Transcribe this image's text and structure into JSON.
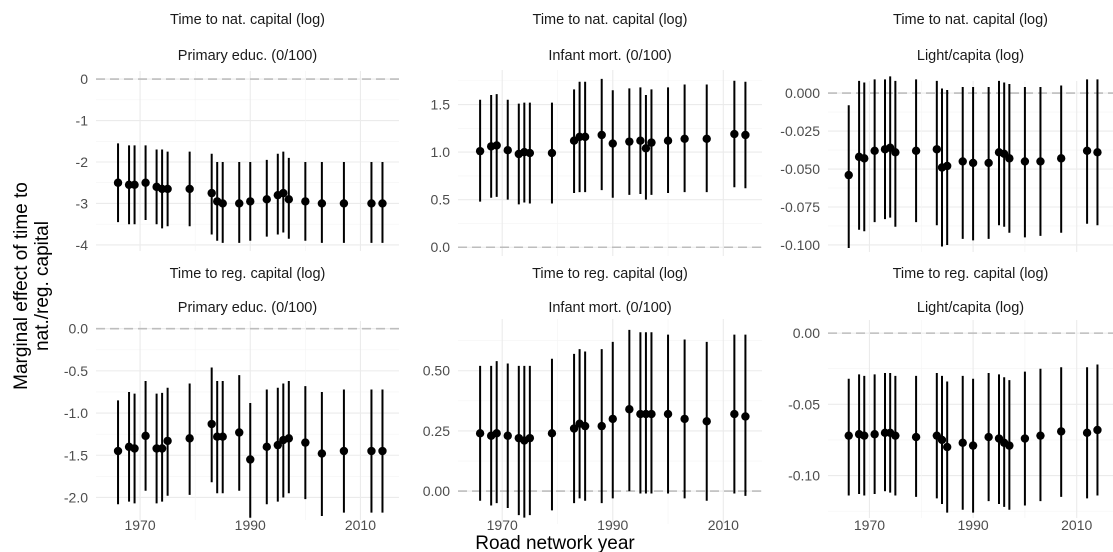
{
  "chart_data": {
    "type": "scatter",
    "style": "point-range",
    "xlabel": "Road network year",
    "ylabel": "Marginal effect of time to\nnat./reg. capital",
    "grid": true,
    "zero_line": "dashed",
    "panels": [
      {
        "row_strip": "Time to nat. capital (log)",
        "col_strip": "Primary educ. (0/100)",
        "xlim": [
          1962,
          2017
        ],
        "ylim": [
          -4.05,
          0.05
        ],
        "yticks": [
          "0",
          "-1",
          "-2",
          "-3",
          "-4"
        ],
        "points": [
          {
            "x": 1966,
            "y": -2.5,
            "lo": -3.45,
            "hi": -1.55
          },
          {
            "x": 1968,
            "y": -2.55,
            "lo": -3.5,
            "hi": -1.6
          },
          {
            "x": 1969,
            "y": -2.55,
            "lo": -3.5,
            "hi": -1.6
          },
          {
            "x": 1971,
            "y": -2.5,
            "lo": -3.4,
            "hi": -1.6
          },
          {
            "x": 1973,
            "y": -2.6,
            "lo": -3.5,
            "hi": -1.7
          },
          {
            "x": 1974,
            "y": -2.65,
            "lo": -3.6,
            "hi": -1.7
          },
          {
            "x": 1975,
            "y": -2.65,
            "lo": -3.55,
            "hi": -1.75
          },
          {
            "x": 1979,
            "y": -2.65,
            "lo": -3.55,
            "hi": -1.75
          },
          {
            "x": 1983,
            "y": -2.75,
            "lo": -3.75,
            "hi": -1.8
          },
          {
            "x": 1984,
            "y": -2.95,
            "lo": -3.9,
            "hi": -2.0
          },
          {
            "x": 1985,
            "y": -3.0,
            "lo": -3.95,
            "hi": -2.0
          },
          {
            "x": 1988,
            "y": -3.0,
            "lo": -3.95,
            "hi": -2.0
          },
          {
            "x": 1990,
            "y": -2.95,
            "lo": -3.9,
            "hi": -2.0
          },
          {
            "x": 1993,
            "y": -2.9,
            "lo": -3.8,
            "hi": -1.95
          },
          {
            "x": 1995,
            "y": -2.8,
            "lo": -3.75,
            "hi": -1.8
          },
          {
            "x": 1996,
            "y": -2.75,
            "lo": -3.7,
            "hi": -1.75
          },
          {
            "x": 1997,
            "y": -2.9,
            "lo": -3.85,
            "hi": -1.9
          },
          {
            "x": 2000,
            "y": -2.95,
            "lo": -3.9,
            "hi": -2.0
          },
          {
            "x": 2003,
            "y": -3.0,
            "lo": -3.95,
            "hi": -2.0
          },
          {
            "x": 2007,
            "y": -3.0,
            "lo": -3.95,
            "hi": -2.0
          },
          {
            "x": 2012,
            "y": -3.0,
            "lo": -3.95,
            "hi": -2.0
          },
          {
            "x": 2014,
            "y": -3.0,
            "lo": -3.95,
            "hi": -2.0
          }
        ]
      },
      {
        "row_strip": "Time to nat. capital (log)",
        "col_strip": "Infant mort. (0/100)",
        "xlim": [
          1962,
          2017
        ],
        "ylim": [
          -0.05,
          1.8
        ],
        "yticks": [
          "0.0",
          "0.5",
          "1.0",
          "1.5"
        ],
        "points": [
          {
            "x": 1966,
            "y": 1.01,
            "lo": 0.48,
            "hi": 1.55
          },
          {
            "x": 1968,
            "y": 1.06,
            "lo": 0.52,
            "hi": 1.6
          },
          {
            "x": 1969,
            "y": 1.07,
            "lo": 0.53,
            "hi": 1.61
          },
          {
            "x": 1971,
            "y": 1.02,
            "lo": 0.5,
            "hi": 1.55
          },
          {
            "x": 1973,
            "y": 0.98,
            "lo": 0.45,
            "hi": 1.51
          },
          {
            "x": 1974,
            "y": 1.0,
            "lo": 0.47,
            "hi": 1.52
          },
          {
            "x": 1975,
            "y": 0.99,
            "lo": 0.46,
            "hi": 1.52
          },
          {
            "x": 1979,
            "y": 0.99,
            "lo": 0.46,
            "hi": 1.52
          },
          {
            "x": 1983,
            "y": 1.12,
            "lo": 0.57,
            "hi": 1.66
          },
          {
            "x": 1984,
            "y": 1.16,
            "lo": 0.58,
            "hi": 1.74
          },
          {
            "x": 1985,
            "y": 1.16,
            "lo": 0.58,
            "hi": 1.74
          },
          {
            "x": 1988,
            "y": 1.18,
            "lo": 0.6,
            "hi": 1.77
          },
          {
            "x": 1990,
            "y": 1.09,
            "lo": 0.52,
            "hi": 1.65
          },
          {
            "x": 1993,
            "y": 1.11,
            "lo": 0.55,
            "hi": 1.67
          },
          {
            "x": 1995,
            "y": 1.12,
            "lo": 0.56,
            "hi": 1.68
          },
          {
            "x": 1996,
            "y": 1.04,
            "lo": 0.5,
            "hi": 1.6
          },
          {
            "x": 1997,
            "y": 1.1,
            "lo": 0.55,
            "hi": 1.66
          },
          {
            "x": 2000,
            "y": 1.12,
            "lo": 0.57,
            "hi": 1.68
          },
          {
            "x": 2003,
            "y": 1.14,
            "lo": 0.58,
            "hi": 1.71
          },
          {
            "x": 2007,
            "y": 1.14,
            "lo": 0.58,
            "hi": 1.71
          },
          {
            "x": 2012,
            "y": 1.19,
            "lo": 0.63,
            "hi": 1.75
          },
          {
            "x": 2014,
            "y": 1.18,
            "lo": 0.62,
            "hi": 1.74
          }
        ]
      },
      {
        "row_strip": "Time to nat. capital (log)",
        "col_strip": "Light/capita (log)",
        "xlim": [
          1962,
          2017
        ],
        "ylim": [
          -0.102,
          0.004
        ],
        "yticks": [
          "0.000",
          "-0.025",
          "-0.050",
          "-0.075",
          "-0.100"
        ],
        "points": [
          {
            "x": 1966,
            "y": -0.054,
            "lo": -0.102,
            "hi": -0.008
          },
          {
            "x": 1968,
            "y": -0.042,
            "lo": -0.09,
            "hi": 0.008
          },
          {
            "x": 1969,
            "y": -0.043,
            "lo": -0.091,
            "hi": 0.007
          },
          {
            "x": 1971,
            "y": -0.038,
            "lo": -0.085,
            "hi": 0.009
          },
          {
            "x": 1973,
            "y": -0.037,
            "lo": -0.083,
            "hi": 0.009
          },
          {
            "x": 1974,
            "y": -0.036,
            "lo": -0.082,
            "hi": 0.011
          },
          {
            "x": 1975,
            "y": -0.039,
            "lo": -0.088,
            "hi": 0.008
          },
          {
            "x": 1979,
            "y": -0.038,
            "lo": -0.085,
            "hi": 0.009
          },
          {
            "x": 1983,
            "y": -0.037,
            "lo": -0.087,
            "hi": 0.008
          },
          {
            "x": 1984,
            "y": -0.049,
            "lo": -0.101,
            "hi": 0.003
          },
          {
            "x": 1985,
            "y": -0.048,
            "lo": -0.1,
            "hi": 0.002
          },
          {
            "x": 1988,
            "y": -0.045,
            "lo": -0.096,
            "hi": 0.004
          },
          {
            "x": 1990,
            "y": -0.046,
            "lo": -0.097,
            "hi": 0.004
          },
          {
            "x": 1993,
            "y": -0.046,
            "lo": -0.096,
            "hi": 0.004
          },
          {
            "x": 1995,
            "y": -0.039,
            "lo": -0.087,
            "hi": 0.008
          },
          {
            "x": 1996,
            "y": -0.04,
            "lo": -0.088,
            "hi": 0.007
          },
          {
            "x": 1997,
            "y": -0.043,
            "lo": -0.092,
            "hi": 0.006
          },
          {
            "x": 2000,
            "y": -0.045,
            "lo": -0.095,
            "hi": 0.004
          },
          {
            "x": 2003,
            "y": -0.045,
            "lo": -0.094,
            "hi": 0.004
          },
          {
            "x": 2007,
            "y": -0.043,
            "lo": -0.092,
            "hi": 0.005
          },
          {
            "x": 2012,
            "y": -0.038,
            "lo": -0.086,
            "hi": 0.009
          },
          {
            "x": 2014,
            "y": -0.039,
            "lo": -0.087,
            "hi": 0.009
          }
        ]
      },
      {
        "row_strip": "Time to reg. capital (log)",
        "col_strip": "Primary educ. (0/100)",
        "xlim": [
          1962,
          2017
        ],
        "ylim": [
          -2.22,
          0.02
        ],
        "yticks": [
          "0.0",
          "-0.5",
          "-1.0",
          "-1.5",
          "-2.0"
        ],
        "points": [
          {
            "x": 1966,
            "y": -1.45,
            "lo": -2.08,
            "hi": -0.85
          },
          {
            "x": 1968,
            "y": -1.4,
            "lo": -2.05,
            "hi": -0.75
          },
          {
            "x": 1969,
            "y": -1.42,
            "lo": -2.07,
            "hi": -0.77
          },
          {
            "x": 1971,
            "y": -1.27,
            "lo": -1.92,
            "hi": -0.62
          },
          {
            "x": 1973,
            "y": -1.42,
            "lo": -2.07,
            "hi": -0.77
          },
          {
            "x": 1974,
            "y": -1.42,
            "lo": -2.05,
            "hi": -0.76
          },
          {
            "x": 1975,
            "y": -1.33,
            "lo": -1.98,
            "hi": -0.7
          },
          {
            "x": 1979,
            "y": -1.3,
            "lo": -1.97,
            "hi": -0.65
          },
          {
            "x": 1983,
            "y": -1.13,
            "lo": -1.82,
            "hi": -0.46
          },
          {
            "x": 1984,
            "y": -1.28,
            "lo": -1.95,
            "hi": -0.62
          },
          {
            "x": 1985,
            "y": -1.28,
            "lo": -1.95,
            "hi": -0.62
          },
          {
            "x": 1988,
            "y": -1.23,
            "lo": -1.92,
            "hi": -0.55
          },
          {
            "x": 1990,
            "y": -1.55,
            "lo": -2.24,
            "hi": -0.88
          },
          {
            "x": 1993,
            "y": -1.4,
            "lo": -2.08,
            "hi": -0.72
          },
          {
            "x": 1995,
            "y": -1.38,
            "lo": -2.05,
            "hi": -0.7
          },
          {
            "x": 1996,
            "y": -1.32,
            "lo": -2.0,
            "hi": -0.65
          },
          {
            "x": 1997,
            "y": -1.3,
            "lo": -1.95,
            "hi": -0.62
          },
          {
            "x": 2000,
            "y": -1.35,
            "lo": -2.02,
            "hi": -0.68
          },
          {
            "x": 2003,
            "y": -1.48,
            "lo": -2.22,
            "hi": -0.75
          },
          {
            "x": 2007,
            "y": -1.45,
            "lo": -2.18,
            "hi": -0.72
          },
          {
            "x": 2012,
            "y": -1.45,
            "lo": -2.18,
            "hi": -0.72
          },
          {
            "x": 2014,
            "y": -1.45,
            "lo": -2.18,
            "hi": -0.72
          }
        ]
      },
      {
        "row_strip": "Time to reg. capital (log)",
        "col_strip": "Infant mort. (0/100)",
        "xlim": [
          1962,
          2017
        ],
        "ylim": [
          -0.12,
          0.69
        ],
        "yticks": [
          "0.00",
          "0.25",
          "0.50"
        ],
        "points": [
          {
            "x": 1966,
            "y": 0.24,
            "lo": -0.04,
            "hi": 0.52
          },
          {
            "x": 1968,
            "y": 0.23,
            "lo": -0.06,
            "hi": 0.52
          },
          {
            "x": 1969,
            "y": 0.24,
            "lo": -0.05,
            "hi": 0.54
          },
          {
            "x": 1971,
            "y": 0.23,
            "lo": -0.07,
            "hi": 0.53
          },
          {
            "x": 1973,
            "y": 0.22,
            "lo": -0.1,
            "hi": 0.52
          },
          {
            "x": 1974,
            "y": 0.21,
            "lo": -0.11,
            "hi": 0.52
          },
          {
            "x": 1975,
            "y": 0.22,
            "lo": -0.1,
            "hi": 0.52
          },
          {
            "x": 1979,
            "y": 0.24,
            "lo": -0.08,
            "hi": 0.55
          },
          {
            "x": 1983,
            "y": 0.26,
            "lo": -0.05,
            "hi": 0.57
          },
          {
            "x": 1984,
            "y": 0.28,
            "lo": -0.03,
            "hi": 0.59
          },
          {
            "x": 1985,
            "y": 0.27,
            "lo": -0.04,
            "hi": 0.58
          },
          {
            "x": 1988,
            "y": 0.27,
            "lo": -0.05,
            "hi": 0.59
          },
          {
            "x": 1990,
            "y": 0.3,
            "lo": -0.03,
            "hi": 0.62
          },
          {
            "x": 1993,
            "y": 0.34,
            "lo": 0.0,
            "hi": 0.67
          },
          {
            "x": 1995,
            "y": 0.32,
            "lo": -0.01,
            "hi": 0.66
          },
          {
            "x": 1996,
            "y": 0.32,
            "lo": -0.01,
            "hi": 0.66
          },
          {
            "x": 1997,
            "y": 0.32,
            "lo": -0.01,
            "hi": 0.66
          },
          {
            "x": 2000,
            "y": 0.32,
            "lo": -0.01,
            "hi": 0.65
          },
          {
            "x": 2003,
            "y": 0.3,
            "lo": -0.03,
            "hi": 0.63
          },
          {
            "x": 2007,
            "y": 0.29,
            "lo": -0.04,
            "hi": 0.62
          },
          {
            "x": 2012,
            "y": 0.32,
            "lo": -0.01,
            "hi": 0.65
          },
          {
            "x": 2014,
            "y": 0.31,
            "lo": -0.02,
            "hi": 0.65
          }
        ]
      },
      {
        "row_strip": "Time to reg. capital (log)",
        "col_strip": "Light/capita (log)",
        "xlim": [
          1962,
          2017
        ],
        "ylim": [
          -0.127,
          0.005
        ],
        "yticks": [
          "0.00",
          "-0.05",
          "-0.10"
        ],
        "points": [
          {
            "x": 1966,
            "y": -0.072,
            "lo": -0.114,
            "hi": -0.032
          },
          {
            "x": 1968,
            "y": -0.071,
            "lo": -0.113,
            "hi": -0.029
          },
          {
            "x": 1969,
            "y": -0.072,
            "lo": -0.114,
            "hi": -0.03
          },
          {
            "x": 1971,
            "y": -0.071,
            "lo": -0.113,
            "hi": -0.029
          },
          {
            "x": 1973,
            "y": -0.07,
            "lo": -0.111,
            "hi": -0.028
          },
          {
            "x": 1974,
            "y": -0.07,
            "lo": -0.112,
            "hi": -0.028
          },
          {
            "x": 1975,
            "y": -0.072,
            "lo": -0.114,
            "hi": -0.03
          },
          {
            "x": 1979,
            "y": -0.073,
            "lo": -0.115,
            "hi": -0.03
          },
          {
            "x": 1983,
            "y": -0.072,
            "lo": -0.116,
            "hi": -0.028
          },
          {
            "x": 1984,
            "y": -0.075,
            "lo": -0.12,
            "hi": -0.03
          },
          {
            "x": 1985,
            "y": -0.08,
            "lo": -0.126,
            "hi": -0.034
          },
          {
            "x": 1988,
            "y": -0.077,
            "lo": -0.124,
            "hi": -0.03
          },
          {
            "x": 1990,
            "y": -0.079,
            "lo": -0.126,
            "hi": -0.032
          },
          {
            "x": 1993,
            "y": -0.073,
            "lo": -0.118,
            "hi": -0.028
          },
          {
            "x": 1995,
            "y": -0.074,
            "lo": -0.12,
            "hi": -0.029
          },
          {
            "x": 1996,
            "y": -0.077,
            "lo": -0.122,
            "hi": -0.031
          },
          {
            "x": 1997,
            "y": -0.079,
            "lo": -0.124,
            "hi": -0.033
          },
          {
            "x": 2000,
            "y": -0.074,
            "lo": -0.121,
            "hi": -0.027
          },
          {
            "x": 2003,
            "y": -0.072,
            "lo": -0.118,
            "hi": -0.025
          },
          {
            "x": 2007,
            "y": -0.069,
            "lo": -0.115,
            "hi": -0.024
          },
          {
            "x": 2012,
            "y": -0.07,
            "lo": -0.116,
            "hi": -0.024
          },
          {
            "x": 2014,
            "y": -0.068,
            "lo": -0.114,
            "hi": -0.022
          }
        ]
      }
    ],
    "xticks": [
      1970,
      1990,
      2010
    ]
  }
}
